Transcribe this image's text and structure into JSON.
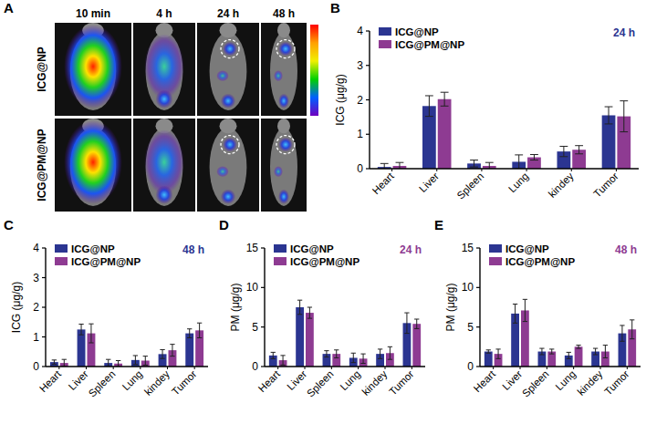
{
  "image_panel": {
    "panel_label": "A",
    "columns": [
      "10 min",
      "4 h",
      "24 h",
      "48 h"
    ],
    "rows": [
      "ICG@NP",
      "ICG@PM@NP"
    ]
  },
  "chart_data": [
    {
      "type": "bar",
      "panel_label": "B",
      "annotation": "24 h",
      "y_label": "ICG (μg/g)",
      "categories": [
        "Heart",
        "Liver",
        "Spleen",
        "Lung",
        "kindey",
        "Tumor"
      ],
      "ylim": [
        0,
        4
      ],
      "yticks": [
        0,
        1,
        2,
        3,
        4
      ],
      "legend": "top-left",
      "series": [
        {
          "name": "ICG@NP",
          "color": "#2b3591",
          "values": [
            0.05,
            1.82,
            0.15,
            0.2,
            0.5,
            1.55
          ],
          "errors": [
            0.1,
            0.3,
            0.1,
            0.2,
            0.15,
            0.25
          ]
        },
        {
          "name": "ICG@PM@NP",
          "color": "#8e3b92",
          "values": [
            0.08,
            2.02,
            0.08,
            0.33,
            0.55,
            1.52
          ],
          "errors": [
            0.1,
            0.2,
            0.1,
            0.08,
            0.12,
            0.45
          ]
        }
      ]
    },
    {
      "type": "bar",
      "panel_label": "C",
      "annotation": "48 h",
      "y_label": "ICG (μg/g)",
      "categories": [
        "Heart",
        "Liver",
        "Spleen",
        "Lung",
        "kindey",
        "Tumor"
      ],
      "ylim": [
        0,
        4
      ],
      "yticks": [
        0,
        1,
        2,
        3,
        4
      ],
      "legend": "top-left",
      "series": [
        {
          "name": "ICG@NP",
          "color": "#2b3591",
          "values": [
            0.15,
            1.25,
            0.12,
            0.22,
            0.42,
            1.12
          ],
          "errors": [
            0.07,
            0.18,
            0.12,
            0.15,
            0.15,
            0.15
          ]
        },
        {
          "name": "ICG@PM@NP",
          "color": "#8e3b92",
          "values": [
            0.12,
            1.12,
            0.1,
            0.2,
            0.55,
            1.22
          ],
          "errors": [
            0.12,
            0.32,
            0.1,
            0.15,
            0.2,
            0.25
          ]
        }
      ]
    },
    {
      "type": "bar",
      "panel_label": "D",
      "annotation": "24 h",
      "y_label": "PM (μg/g)",
      "categories": [
        "Heart",
        "Liver",
        "Spleen",
        "Lung",
        "kindey",
        "Tumor"
      ],
      "ylim": [
        0,
        15
      ],
      "yticks": [
        0,
        5,
        10,
        15
      ],
      "legend": "top-left",
      "series": [
        {
          "name": "ICG@NP",
          "color": "#2b3591",
          "values": [
            1.4,
            7.5,
            1.6,
            1.1,
            1.6,
            5.5
          ],
          "errors": [
            0.4,
            0.9,
            0.4,
            0.6,
            0.6,
            1.3
          ]
        },
        {
          "name": "ICG@PM@NP",
          "color": "#8e3b92",
          "values": [
            0.8,
            6.8,
            1.6,
            1.0,
            1.7,
            5.4
          ],
          "errors": [
            0.6,
            0.7,
            0.5,
            0.6,
            0.8,
            0.6
          ]
        }
      ]
    },
    {
      "type": "bar",
      "panel_label": "E",
      "annotation": "48 h",
      "y_label": "PM (μg/g)",
      "categories": [
        "Heart",
        "Liver",
        "Spleen",
        "Lung",
        "kindey",
        "Tumor"
      ],
      "ylim": [
        0,
        15
      ],
      "yticks": [
        0,
        5,
        10,
        15
      ],
      "legend": "top-left",
      "series": [
        {
          "name": "ICG@NP",
          "color": "#2b3591",
          "values": [
            1.9,
            6.7,
            1.9,
            1.4,
            1.9,
            4.2
          ],
          "errors": [
            0.2,
            1.2,
            0.4,
            0.4,
            0.4,
            1.0
          ]
        },
        {
          "name": "ICG@PM@NP",
          "color": "#8e3b92",
          "values": [
            1.6,
            7.1,
            1.9,
            2.5,
            1.9,
            4.7
          ],
          "errors": [
            0.6,
            1.4,
            0.3,
            0.2,
            0.8,
            1.2
          ]
        }
      ]
    }
  ]
}
